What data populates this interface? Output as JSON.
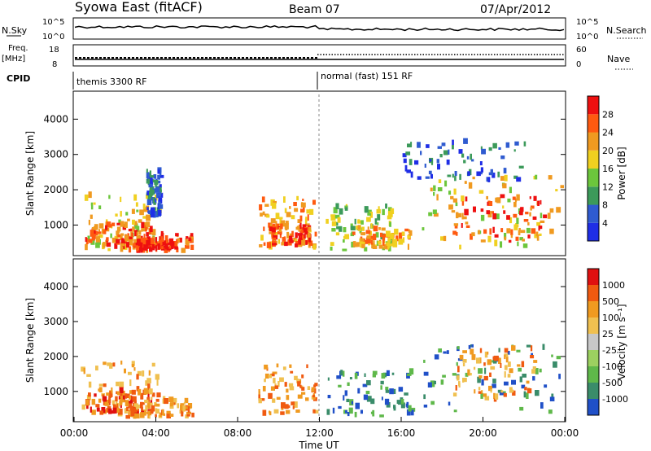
{
  "header": {
    "station": "Syowa East (fitACF)",
    "beam": "Beam 07",
    "date": "07/Apr/2012"
  },
  "strips": {
    "nsky_label": "N.Sky",
    "nsky_top": "10^5",
    "nsky_bottom": "10^0",
    "nsearch_label": "N.Search",
    "nsearch_top": "10^5",
    "nsearch_bottom": "10^0",
    "freq_label": "Freq.",
    "freq_unit": "[MHz]",
    "freq_top": "18",
    "freq_bottom": "8",
    "nave_label": "Nave",
    "nave_top": "60",
    "nave_bottom": "0",
    "cpid_label": "CPID",
    "cpid_segments": [
      {
        "label": "themis 3300 RF",
        "start_hour": 0
      },
      {
        "label": "normal (fast) 151 RF",
        "start_hour": 12
      }
    ]
  },
  "chart_data": [
    {
      "type": "heatmap",
      "name": "Power",
      "ylabel": "Slant Range [km]",
      "ylim": [
        180,
        4700
      ],
      "xlim_hours": [
        0,
        24
      ],
      "yticks": [
        "1000",
        "2000",
        "3000",
        "4000"
      ],
      "colorbar_label": "Power [dB]",
      "colorbar_ticks": [
        "4",
        "8",
        "12",
        "16",
        "20",
        "24",
        "28"
      ],
      "colors": [
        "#1f2ee6",
        "#2f5bd0",
        "#3c9a5a",
        "#6cc63c",
        "#f0d020",
        "#f09a20",
        "#ff5a10",
        "#ee1010"
      ],
      "regions": [
        {
          "t0": 0.3,
          "t1": 4.2,
          "r0": 250,
          "r1": 1800,
          "level": 4
        },
        {
          "t0": 0.5,
          "t1": 3.8,
          "r0": 300,
          "r1": 1000,
          "level": 6
        },
        {
          "t0": 2.0,
          "t1": 5.8,
          "r0": 200,
          "r1": 700,
          "level": 6
        },
        {
          "t0": 3.0,
          "t1": 5.0,
          "r0": 200,
          "r1": 500,
          "level": 7
        },
        {
          "t0": 3.5,
          "t1": 4.2,
          "r0": 1200,
          "r1": 2500,
          "level": 1
        },
        {
          "t0": 9.0,
          "t1": 11.8,
          "r0": 300,
          "r1": 1700,
          "level": 5
        },
        {
          "t0": 9.5,
          "t1": 11.5,
          "r0": 350,
          "r1": 900,
          "level": 6
        },
        {
          "t0": 12.3,
          "t1": 15.5,
          "r0": 250,
          "r1": 1500,
          "level": 3
        },
        {
          "t0": 13.5,
          "t1": 16.5,
          "r0": 300,
          "r1": 900,
          "level": 5
        },
        {
          "t0": 17.0,
          "t1": 23.8,
          "r0": 300,
          "r1": 2300,
          "level": 4
        },
        {
          "t0": 18.5,
          "t1": 23.0,
          "r0": 500,
          "r1": 1800,
          "level": 6
        },
        {
          "t0": 16.0,
          "t1": 22.0,
          "r0": 2200,
          "r1": 3300,
          "level": 1
        }
      ]
    },
    {
      "type": "heatmap",
      "name": "Velocity",
      "ylabel": "Slant Range [km]",
      "ylim": [
        180,
        4700
      ],
      "xlim_hours": [
        0,
        24
      ],
      "yticks": [
        "1000",
        "2000",
        "3000",
        "4000"
      ],
      "xticks": [
        "00:00",
        "04:00",
        "08:00",
        "12:00",
        "16:00",
        "20:00",
        "00:00"
      ],
      "xlabel": "Time UT",
      "colorbar_label": "Velocity [m s⁻¹]",
      "colorbar_ticks": [
        "1000",
        "500",
        "100",
        "25",
        "-25",
        "-100",
        "-500",
        "-1000"
      ],
      "colors": [
        "#2050c8",
        "#3a8c6a",
        "#5fb84a",
        "#9cd060",
        "#c8c8c8",
        "#f0c050",
        "#f09a20",
        "#f05a10",
        "#e01010"
      ],
      "regions": [
        {
          "t0": 0.3,
          "t1": 4.2,
          "r0": 250,
          "r1": 1800,
          "level": 6
        },
        {
          "t0": 0.5,
          "t1": 3.8,
          "r0": 300,
          "r1": 1000,
          "level": 7
        },
        {
          "t0": 2.0,
          "t1": 5.8,
          "r0": 200,
          "r1": 700,
          "level": 6
        },
        {
          "t0": 9.0,
          "t1": 11.8,
          "r0": 300,
          "r1": 1700,
          "level": 6
        },
        {
          "t0": 12.3,
          "t1": 16.5,
          "r0": 250,
          "r1": 1500,
          "level": 1
        },
        {
          "t0": 17.0,
          "t1": 23.8,
          "r0": 300,
          "r1": 2300,
          "level": 1
        },
        {
          "t0": 18.5,
          "t1": 22.5,
          "r0": 700,
          "r1": 2200,
          "level": 6
        }
      ]
    }
  ]
}
